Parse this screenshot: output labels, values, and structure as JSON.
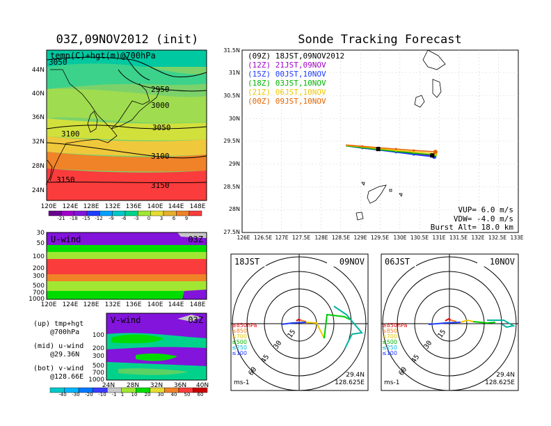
{
  "left_title": "03Z,09NOV2012 (init)",
  "right_title": "Sonde Tracking Forecast",
  "temp_panel": {
    "label": "temp(C)+hgt(m)@700hPa",
    "x_ticks": [
      "120E",
      "124E",
      "128E",
      "132E",
      "136E",
      "140E",
      "144E",
      "148E"
    ],
    "y_ticks": [
      "44N",
      "40N",
      "36N",
      "32N",
      "28N",
      "24N"
    ],
    "contour_labels": [
      "3050",
      "2950",
      "3000",
      "3050",
      "3100",
      "3100",
      "3150",
      "3150"
    ],
    "colorbar_ticks": [
      "-21",
      "-18",
      "-15",
      "-12",
      "-9",
      "-6",
      "-3",
      "0",
      "3",
      "6",
      "9"
    ]
  },
  "u_panel": {
    "label": "U-wind",
    "time": "03Z",
    "y_ticks": [
      "30",
      "50",
      "100",
      "200",
      "300",
      "500",
      "700",
      "1000"
    ],
    "x_ticks": [
      "120E",
      "124E",
      "128E",
      "132E",
      "136E",
      "140E",
      "144E",
      "148E"
    ]
  },
  "v_panel": {
    "label": "V-wind",
    "time": "03Z",
    "y_ticks": [
      "100",
      "200",
      "300",
      "500",
      "700",
      "1000"
    ],
    "x_ticks": [
      "24N",
      "28N",
      "32N",
      "36N",
      "40N"
    ],
    "colorbar_ticks": [
      "-40",
      "-30",
      "-20",
      "-10",
      "-1",
      "1",
      "10",
      "20",
      "30",
      "40",
      "50",
      "60"
    ]
  },
  "notes": [
    "(up) tmp+hgt",
    "@700hPa",
    "(mid) u-wind",
    "@29.36N",
    "(bot) v-wind",
    "@128.66E"
  ],
  "track_map": {
    "legend": [
      {
        "label": "(09Z) 18JST,09NOV2012",
        "color": "#000000"
      },
      {
        "label": "(12Z) 21JST,09NOV",
        "color": "#a000c8"
      },
      {
        "label": "(15Z) 00JST,10NOV",
        "color": "#1e3cff"
      },
      {
        "label": "(18Z) 03JST,10NOV",
        "color": "#00b400"
      },
      {
        "label": "(21Z) 06JST,10NOV",
        "color": "#f0c800"
      },
      {
        "label": "(00Z) 09JST,10NOV",
        "color": "#e66400"
      }
    ],
    "x_ticks": [
      "126E",
      "126.5E",
      "127E",
      "127.5E",
      "128E",
      "128.5E",
      "129E",
      "129.5E",
      "130E",
      "130.5E",
      "131E",
      "131.5E",
      "132E",
      "132.5E",
      "133E"
    ],
    "y_ticks": [
      "31.5N",
      "31N",
      "30.5N",
      "30N",
      "29.5N",
      "29N",
      "28.5N",
      "28N",
      "27.5N"
    ],
    "info": [
      "VUP= 6.0 m/s",
      "VDW= -4.0 m/s",
      "Burst Alt= 18.0 km"
    ]
  },
  "hodo_left": {
    "time": "18JST",
    "date": "09NOV",
    "lat": "29.4N",
    "lon": "128.625E",
    "units": "ms-1",
    "rings": [
      "15",
      "30",
      "45",
      "60"
    ],
    "levels": [
      "≥850hPa",
      "≤850",
      "≤700",
      "≤500",
      "≤250",
      "≤100"
    ]
  },
  "hodo_right": {
    "time": "06JST",
    "date": "10NOV",
    "lat": "29.4N",
    "lon": "128.625E",
    "units": "ms-1",
    "rings": [
      "15",
      "30",
      "45",
      "60"
    ],
    "levels": [
      "≥850hPa",
      "≤850",
      "≤700",
      "≤500",
      "≤250",
      "≤100"
    ]
  },
  "chart_data": {
    "type": "line",
    "title": "Sonde Tracking Forecast",
    "xlim": [
      126,
      133
    ],
    "ylim": [
      27.5,
      31.5
    ],
    "series": [
      {
        "name": "(09Z) 18JST,09NOV2012",
        "x": [
          128.63,
          129.05,
          129.45,
          129.9,
          130.35,
          130.82
        ],
        "y": [
          29.41,
          29.37,
          29.33,
          29.29,
          29.24,
          29.19
        ]
      },
      {
        "name": "(12Z) 21JST,09NOV",
        "x": [
          128.63,
          129.05,
          129.45,
          129.9,
          130.35,
          130.85
        ],
        "y": [
          29.41,
          29.36,
          29.32,
          29.28,
          29.23,
          29.18
        ]
      },
      {
        "name": "(15Z) 00JST,10NOV",
        "x": [
          128.63,
          129.05,
          129.45,
          129.9,
          130.35,
          130.87
        ],
        "y": [
          29.4,
          29.35,
          29.31,
          29.26,
          29.21,
          29.16
        ]
      },
      {
        "name": "(18Z) 03JST,10NOV",
        "x": [
          128.63,
          129.05,
          129.45,
          129.9,
          130.35,
          130.88
        ],
        "y": [
          29.4,
          29.36,
          29.32,
          29.28,
          29.24,
          29.2
        ]
      },
      {
        "name": "(21Z) 06JST,10NOV",
        "x": [
          128.63,
          129.05,
          129.45,
          129.9,
          130.35,
          130.9
        ],
        "y": [
          29.41,
          29.38,
          29.34,
          29.3,
          29.27,
          29.23
        ]
      },
      {
        "name": "(00Z) 09JST,10NOV",
        "x": [
          128.63,
          129.05,
          129.45,
          129.9,
          130.35,
          130.9
        ],
        "y": [
          29.42,
          29.39,
          29.36,
          29.33,
          29.3,
          29.27
        ]
      }
    ]
  },
  "colors": {
    "warm": [
      "#6a0090",
      "#a000c8",
      "#8214dc",
      "#1e3cff",
      "#00a0ff",
      "#00c8c8",
      "#00d28c",
      "#a0e632",
      "#e6dc32",
      "#e6af2d",
      "#f08228",
      "#fa3c3c"
    ],
    "wind": [
      "#00c8c8",
      "#00b4ff",
      "#0078ff",
      "#3c3cff",
      "#c8c8c8",
      "#a0e632",
      "#00dc00",
      "#e6dc32",
      "#f08228",
      "#fa3c3c",
      "#c80000"
    ]
  }
}
